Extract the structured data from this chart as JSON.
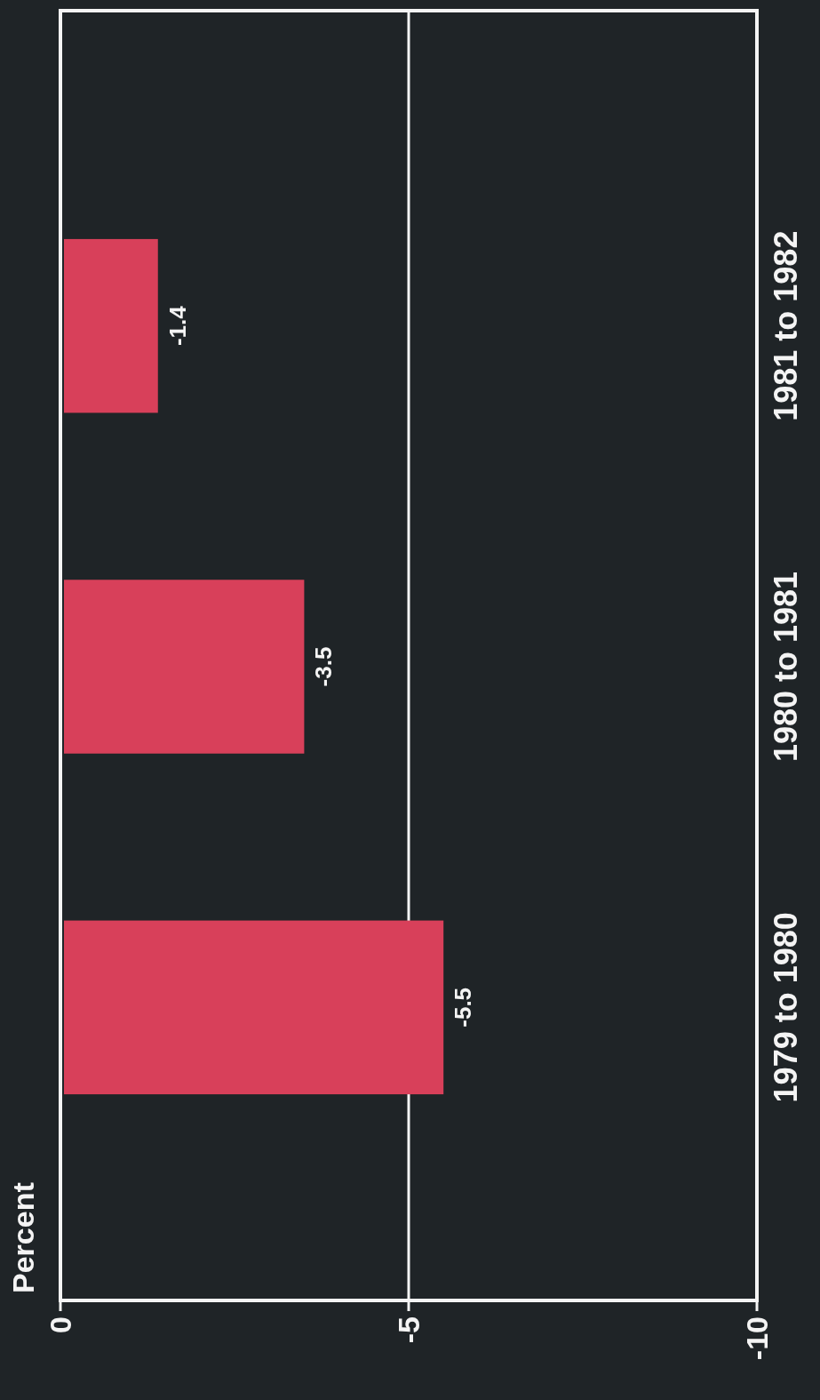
{
  "chart_data": {
    "type": "bar",
    "orientation": "horizontal",
    "annotations": [
      "Percent"
    ],
    "categories": [
      "1981 to 1982",
      "1980 to 1981",
      "1979 to 1980"
    ],
    "values": [
      -1.4,
      -3.5,
      -5.5
    ],
    "color": "#d8405a",
    "xlim": [
      0,
      -10
    ],
    "xticks": [
      0,
      -5,
      -10
    ],
    "grid": "x",
    "data_labels": true
  }
}
